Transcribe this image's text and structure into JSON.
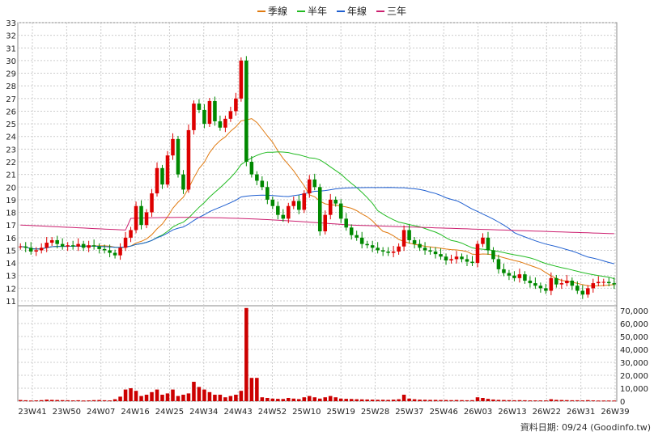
{
  "chart_data": [
    {
      "type": "candlestick+line",
      "legend": [
        "季線",
        "半年",
        "年線",
        "三年"
      ],
      "colors": {
        "季線": "#e07a10",
        "半年": "#22bb22",
        "年線": "#1f5fd0",
        "三年": "#cc1f6f",
        "up": "#dd0000",
        "down": "#008800"
      },
      "ylim": [
        11,
        33
      ],
      "yticks": [
        11,
        12,
        13,
        14,
        15,
        16,
        17,
        18,
        19,
        20,
        21,
        22,
        23,
        24,
        25,
        26,
        27,
        28,
        29,
        30,
        31,
        32,
        33
      ],
      "xticks": [
        "23W41",
        "23W50",
        "24W07",
        "24W16",
        "24W25",
        "24W34",
        "24W43",
        "24W52",
        "25W10",
        "25W19",
        "25W28",
        "25W37",
        "25W46",
        "26W03",
        "26W13",
        "26W22",
        "26W31",
        "26W39"
      ],
      "grid": true,
      "close_series_weekly": [
        15.3,
        15.2,
        14.9,
        15.0,
        15.2,
        15.6,
        15.8,
        15.5,
        15.3,
        15.4,
        15.3,
        15.5,
        15.2,
        15.4,
        15.3,
        15.1,
        15.0,
        14.8,
        14.6,
        15.2,
        16.0,
        16.6,
        18.5,
        17.0,
        18.0,
        19.5,
        21.5,
        20.2,
        22.5,
        23.8,
        21.0,
        19.8,
        24.5,
        26.6,
        26.1,
        25.0,
        26.8,
        25.2,
        24.7,
        25.4,
        26.0,
        27.0,
        30.0,
        22.0,
        21.0,
        20.5,
        20.0,
        19.0,
        18.5,
        17.8,
        17.5,
        18.5,
        18.9,
        18.2,
        19.5,
        20.6,
        20.0,
        16.5,
        17.8,
        19.0,
        18.7,
        17.5,
        16.8,
        16.2,
        16.0,
        15.5,
        15.4,
        15.2,
        15.0,
        14.9,
        14.8,
        14.9,
        15.3,
        16.6,
        15.8,
        15.5,
        15.2,
        15.0,
        14.9,
        14.7,
        14.5,
        14.2,
        14.3,
        14.5,
        14.3,
        14.1,
        14.0,
        15.5,
        16.0,
        15.0,
        14.3,
        13.5,
        13.2,
        13.0,
        12.8,
        13.1,
        12.6,
        12.4,
        12.2,
        12.0,
        11.8,
        12.8,
        12.3,
        12.4,
        12.6,
        12.2,
        11.8,
        11.5,
        12.0,
        12.4,
        12.5,
        12.5,
        12.4,
        12.3
      ],
      "xlabel": "",
      "ylabel": ""
    },
    {
      "type": "bar",
      "ylim": [
        0,
        70000
      ],
      "yticks_labels": [
        "0",
        "10,000",
        "20,000",
        "30,000",
        "40,000",
        "50,000",
        "60,000",
        "70,000"
      ],
      "values": [
        900,
        700,
        500,
        600,
        800,
        1200,
        1000,
        900,
        800,
        700,
        600,
        700,
        500,
        600,
        800,
        900,
        700,
        600,
        1500,
        3500,
        9000,
        10000,
        8000,
        4000,
        5000,
        7000,
        9000,
        5000,
        6000,
        9000,
        4000,
        5000,
        6000,
        15000,
        11000,
        9000,
        7000,
        5000,
        5000,
        3000,
        4000,
        5000,
        8000,
        72000,
        18000,
        18000,
        3000,
        2500,
        2000,
        1800,
        1700,
        2500,
        2000,
        1600,
        3000,
        4000,
        3000,
        2000,
        3000,
        4000,
        3000,
        2000,
        1800,
        1700,
        1500,
        1400,
        1300,
        1200,
        1100,
        1100,
        1000,
        1200,
        1500,
        5000,
        2000,
        1500,
        1200,
        1100,
        1000,
        1000,
        900,
        900,
        800,
        900,
        800,
        700,
        800,
        3000,
        2500,
        1800,
        1300,
        1000,
        900,
        800,
        700,
        800,
        700,
        600,
        600,
        600,
        600,
        1500,
        1000,
        900,
        800,
        700,
        700,
        600,
        800,
        600,
        500,
        500,
        500,
        500
      ]
    }
  ],
  "footer": {
    "source_label": "資料日期: 09/24  (Goodinfo.tw)"
  }
}
